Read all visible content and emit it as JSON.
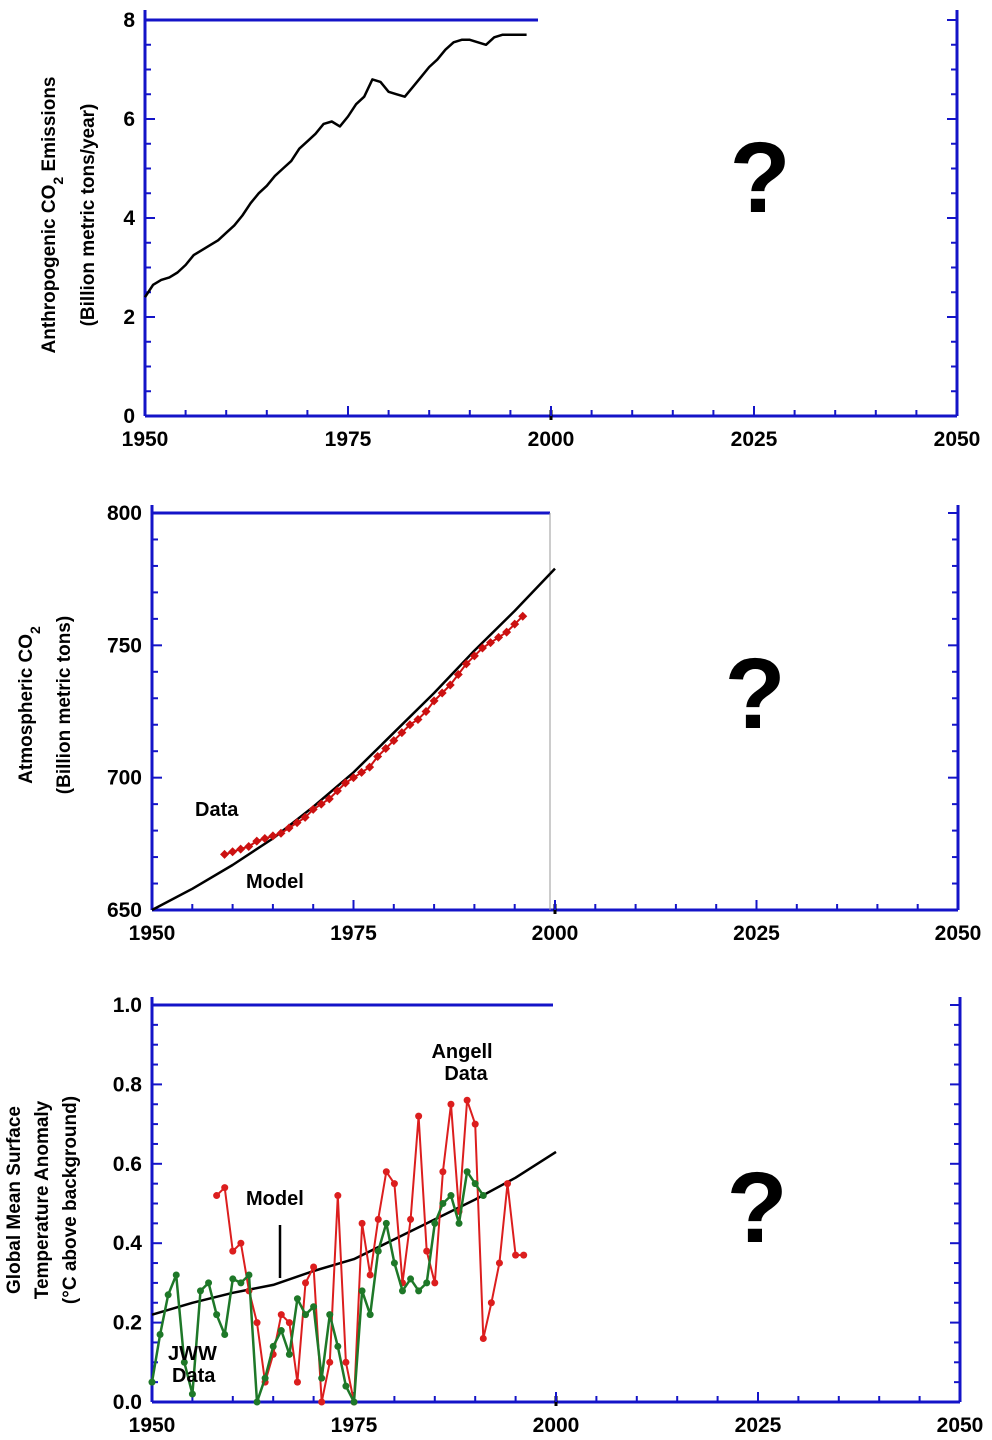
{
  "chart_data": [
    {
      "type": "line",
      "ylabel_line1": "Anthropogenic CO",
      "ylabel_sub": "2",
      "ylabel_line1_end": " Emissions",
      "ylabel_line2": "(Billion metric tons/year)",
      "xlim": [
        1950,
        2050
      ],
      "ylim": [
        0,
        8
      ],
      "xticks": [
        "1950",
        "1975",
        "2000",
        "2025",
        "2050"
      ],
      "yticks": [
        "0",
        "2",
        "4",
        "6",
        "8"
      ],
      "question_mark": "?",
      "series": [
        {
          "x": [
            1950,
            1951,
            1952,
            1953,
            1954,
            1955,
            1956,
            1957,
            1958,
            1959,
            1960,
            1961,
            1962,
            1963,
            1964,
            1965,
            1966,
            1967,
            1968,
            1969,
            1970,
            1971,
            1972,
            1973,
            1974,
            1975,
            1976,
            1977,
            1978,
            1979,
            1980,
            1981,
            1982,
            1983,
            1984,
            1985,
            1986,
            1987,
            1988,
            1989,
            1990,
            1991,
            1992,
            1993,
            1994,
            1995,
            1996,
            1997
          ],
          "y": [
            2.4,
            2.65,
            2.75,
            2.8,
            2.9,
            3.05,
            3.25,
            3.35,
            3.45,
            3.55,
            3.7,
            3.85,
            4.05,
            4.3,
            4.5,
            4.65,
            4.85,
            5.0,
            5.15,
            5.4,
            5.55,
            5.7,
            5.9,
            5.95,
            5.85,
            6.05,
            6.3,
            6.45,
            6.8,
            6.75,
            6.55,
            6.5,
            6.45,
            6.65,
            6.85,
            7.05,
            7.2,
            7.4,
            7.55,
            7.6,
            7.6,
            7.55,
            7.5,
            7.65,
            7.7,
            7.7,
            7.7,
            7.7
          ]
        }
      ]
    },
    {
      "type": "line",
      "ylabel_line1": "Atmospheric CO",
      "ylabel_sub": "2",
      "ylabel_line1_end": "",
      "ylabel_line2": "(Billion metric tons)",
      "xlim": [
        1950,
        2050
      ],
      "ylim": [
        650,
        800
      ],
      "xticks": [
        "1950",
        "1975",
        "2000",
        "2025",
        "2050"
      ],
      "yticks": [
        "650",
        "700",
        "750",
        "800"
      ],
      "question_mark": "?",
      "annotations": {
        "data": "Data",
        "model": "Model"
      },
      "series": [
        {
          "name": "Model",
          "x": [
            1950,
            1955,
            1960,
            1965,
            1970,
            1975,
            1980,
            1985,
            1990,
            1995,
            2000
          ],
          "y": [
            650,
            658,
            667,
            677,
            689,
            702,
            717,
            732,
            748,
            763,
            779
          ]
        },
        {
          "name": "Data",
          "x": [
            1959,
            1960,
            1961,
            1962,
            1963,
            1964,
            1965,
            1966,
            1967,
            1968,
            1969,
            1970,
            1971,
            1972,
            1973,
            1974,
            1975,
            1976,
            1977,
            1978,
            1979,
            1980,
            1981,
            1982,
            1983,
            1984,
            1985,
            1986,
            1987,
            1988,
            1989,
            1990,
            1991,
            1992,
            1993,
            1994,
            1995,
            1996
          ],
          "y": [
            671,
            672,
            673,
            674,
            676,
            677,
            678,
            679,
            681,
            683,
            685,
            688,
            690,
            692,
            695,
            698,
            700,
            702,
            704,
            708,
            711,
            714,
            717,
            720,
            722,
            725,
            729,
            732,
            735,
            739,
            743,
            746,
            749,
            751,
            753,
            755,
            758,
            761
          ]
        }
      ]
    },
    {
      "type": "line",
      "ylabel_line1": "Global Mean Surface",
      "ylabel_line2": "Temperature Anomaly",
      "ylabel_line3": "(°C above background)",
      "xlim": [
        1950,
        2050
      ],
      "ylim": [
        0.0,
        1.0
      ],
      "xticks": [
        "1950",
        "1975",
        "2000",
        "2025",
        "2050"
      ],
      "yticks": [
        "0.0",
        "0.2",
        "0.4",
        "0.6",
        "0.8",
        "1.0"
      ],
      "question_mark": "?",
      "annotations": {
        "model": "Model",
        "angell_1": "Angell",
        "angell_2": "Data",
        "jww_1": "JWW",
        "jww_2": "Data"
      },
      "series": [
        {
          "name": "Model",
          "x": [
            1950,
            1955,
            1960,
            1965,
            1970,
            1975,
            1980,
            1985,
            1990,
            1995,
            2000
          ],
          "y": [
            0.22,
            0.25,
            0.275,
            0.295,
            0.33,
            0.36,
            0.41,
            0.46,
            0.51,
            0.565,
            0.63
          ]
        },
        {
          "name": "Angell Data",
          "x": [
            1958,
            1959,
            1960,
            1961,
            1962,
            1963,
            1964,
            1965,
            1966,
            1967,
            1968,
            1969,
            1970,
            1971,
            1972,
            1973,
            1974,
            1975,
            1976,
            1977,
            1978,
            1979,
            1980,
            1981,
            1982,
            1983,
            1984,
            1985,
            1986,
            1987,
            1988,
            1989,
            1990,
            1991,
            1992,
            1993,
            1994,
            1995,
            1996
          ],
          "y": [
            0.52,
            0.54,
            0.38,
            0.4,
            0.28,
            0.2,
            0.05,
            0.12,
            0.22,
            0.2,
            0.05,
            0.3,
            0.34,
            0.0,
            0.1,
            0.52,
            0.1,
            0.0,
            0.45,
            0.32,
            0.46,
            0.58,
            0.55,
            0.3,
            0.46,
            0.72,
            0.38,
            0.3,
            0.58,
            0.75,
            0.48,
            0.76,
            0.7,
            0.16,
            0.25,
            0.35,
            0.55,
            0.37,
            0.37
          ]
        },
        {
          "name": "JWW Data",
          "x": [
            1950,
            1951,
            1952,
            1953,
            1954,
            1955,
            1956,
            1957,
            1958,
            1959,
            1960,
            1961,
            1962,
            1963,
            1964,
            1965,
            1966,
            1967,
            1968,
            1969,
            1970,
            1971,
            1972,
            1973,
            1974,
            1975,
            1976,
            1977,
            1978,
            1979,
            1980,
            1981,
            1982,
            1983,
            1984,
            1985,
            1986,
            1987,
            1988,
            1989,
            1990,
            1991
          ],
          "y": [
            0.05,
            0.17,
            0.27,
            0.32,
            0.1,
            0.02,
            0.28,
            0.3,
            0.22,
            0.17,
            0.31,
            0.3,
            0.32,
            0.0,
            0.06,
            0.14,
            0.18,
            0.12,
            0.26,
            0.22,
            0.24,
            0.06,
            0.22,
            0.14,
            0.04,
            0.0,
            0.28,
            0.22,
            0.38,
            0.45,
            0.35,
            0.28,
            0.31,
            0.28,
            0.3,
            0.45,
            0.5,
            0.52,
            0.45,
            0.58,
            0.55,
            0.52
          ]
        }
      ]
    }
  ],
  "colors": {
    "axis": "#1414c8",
    "model": "#000000",
    "angell": "#dc1e1e",
    "jww": "#1e7828",
    "data_marker": "#cc1111"
  }
}
